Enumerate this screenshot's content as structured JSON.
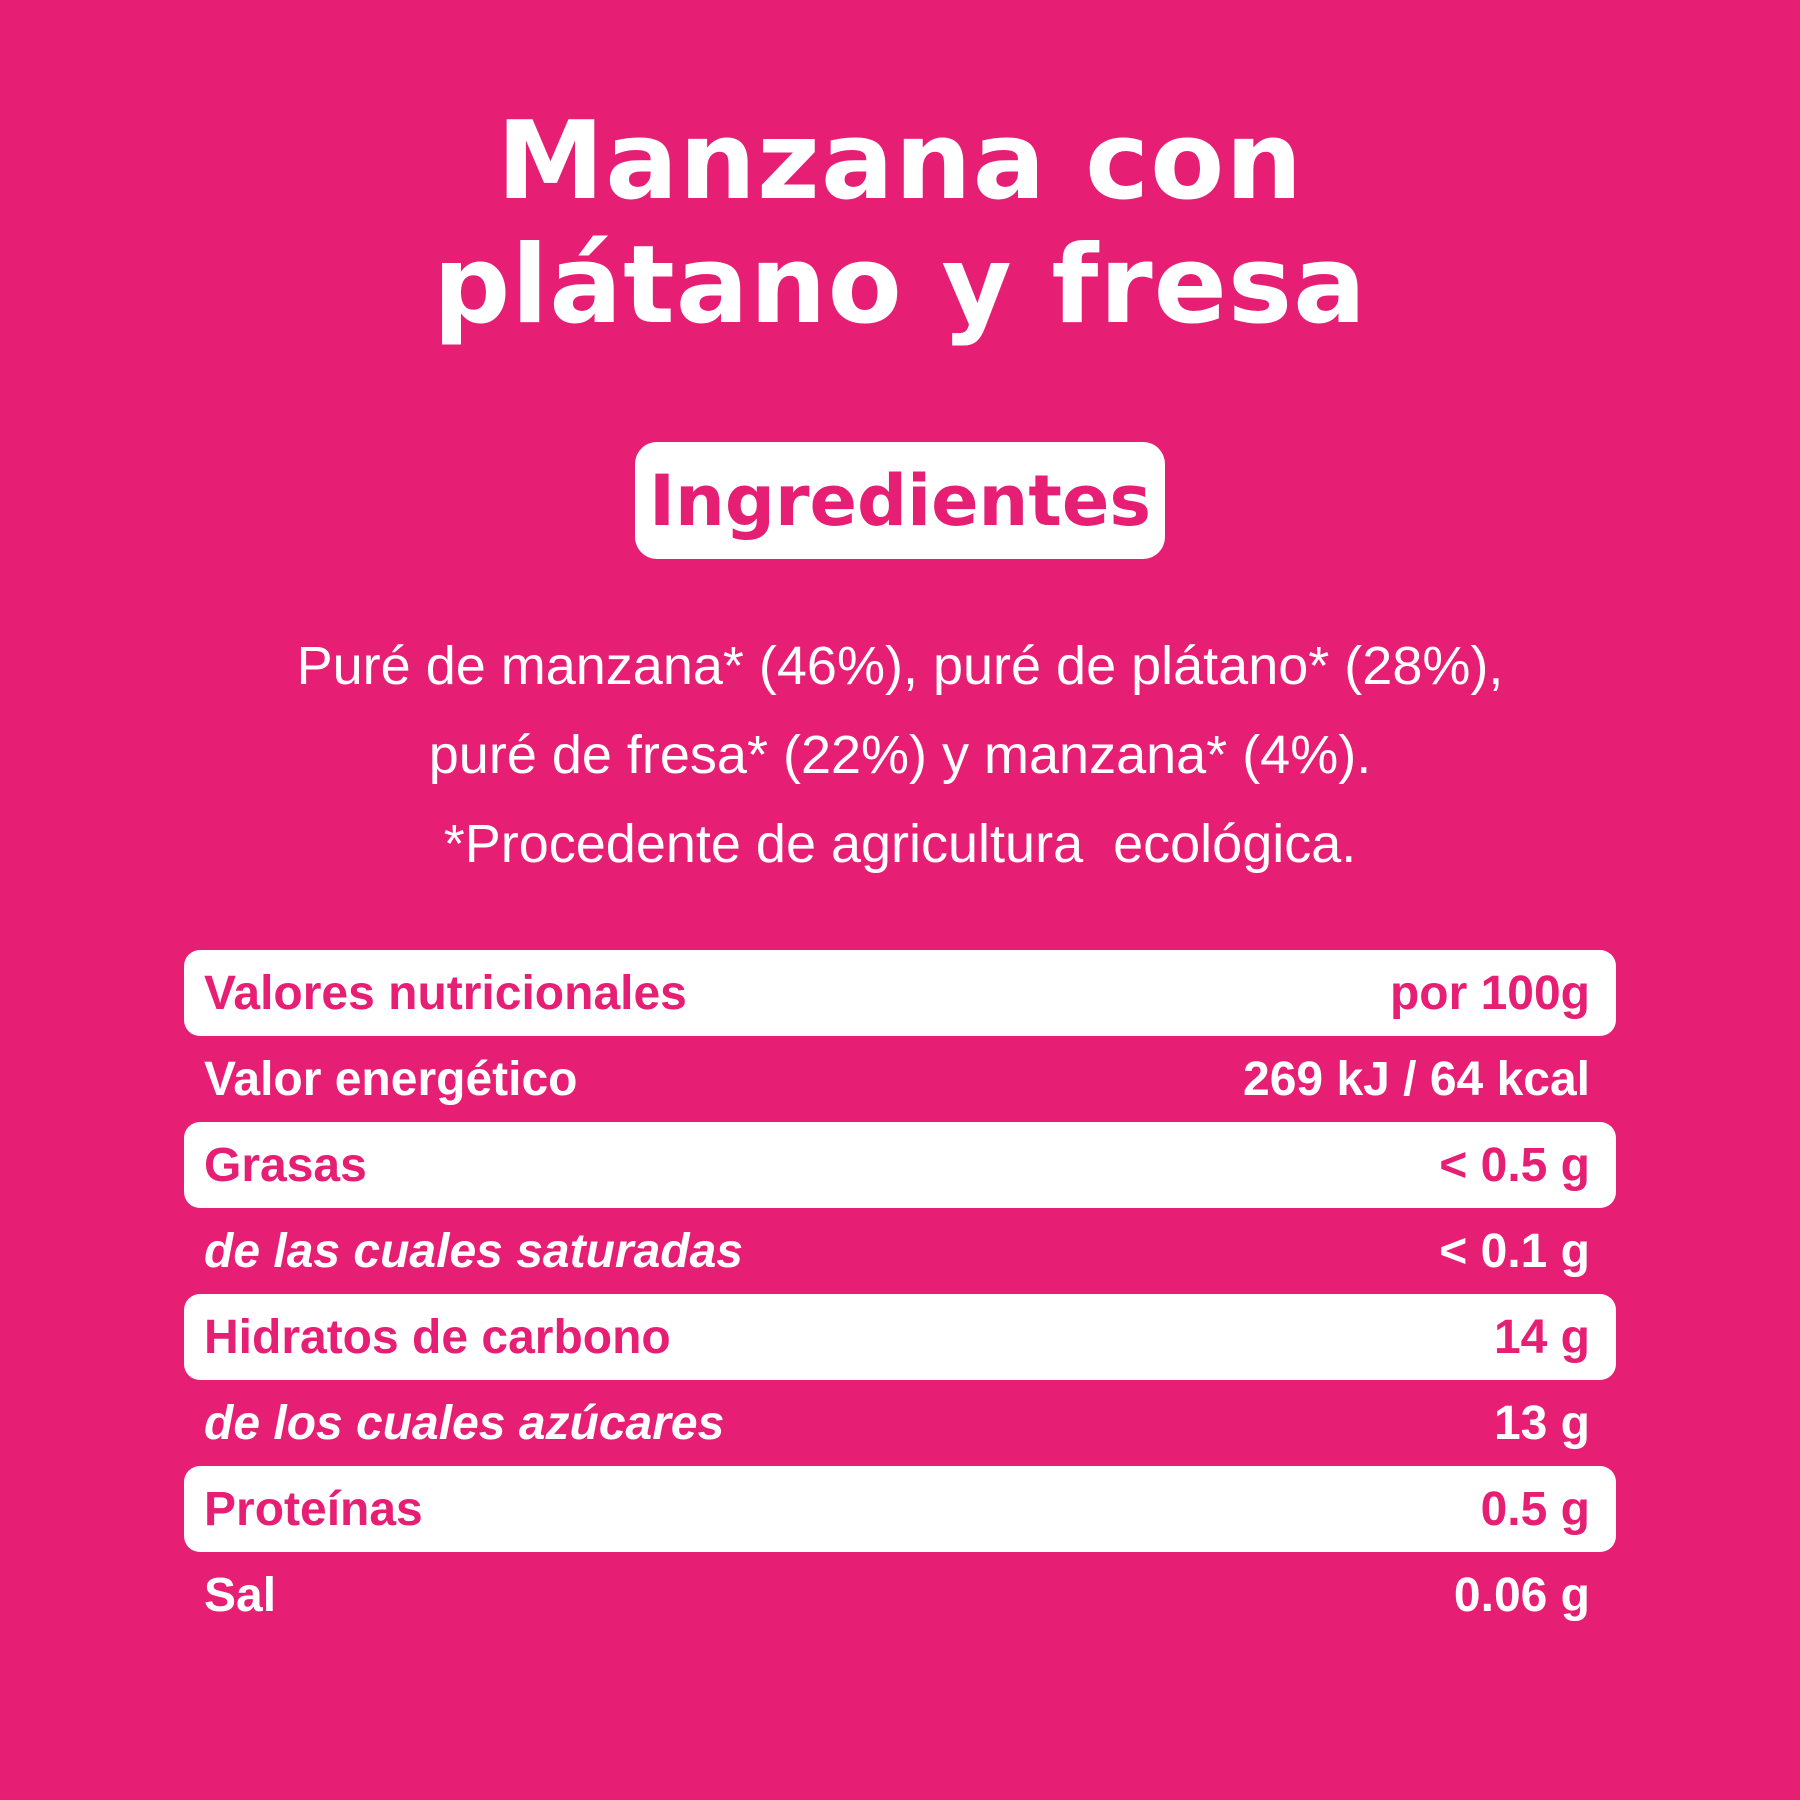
{
  "title": {
    "line1": "Manzana con",
    "line2": "plátano y fresa"
  },
  "ingredients_heading": "Ingredientes",
  "ingredients": {
    "line1": "Puré de manzana* (46%), puré de plátano* (28%),",
    "line2": "puré de fresa* (22%) y manzana* (4%).",
    "line3": "*Procedente de agricultura  ecológica."
  },
  "nutrition": [
    {
      "label": "Valores nutricionales",
      "value": "por 100g"
    },
    {
      "label": "Valor energético",
      "value": "269 kJ / 64 kcal"
    },
    {
      "label": "Grasas",
      "value": "< 0.5 g"
    },
    {
      "label": "de las cuales saturadas",
      "value": "< 0.1 g"
    },
    {
      "label": "Hidratos de carbono",
      "value": "14 g"
    },
    {
      "label": "de los cuales azúcares",
      "value": "13 g"
    },
    {
      "label": "Proteínas",
      "value": "0.5 g"
    },
    {
      "label": "Sal",
      "value": "0.06 g"
    }
  ],
  "colors": {
    "background": "#e61f74",
    "foreground": "#ffffff"
  }
}
